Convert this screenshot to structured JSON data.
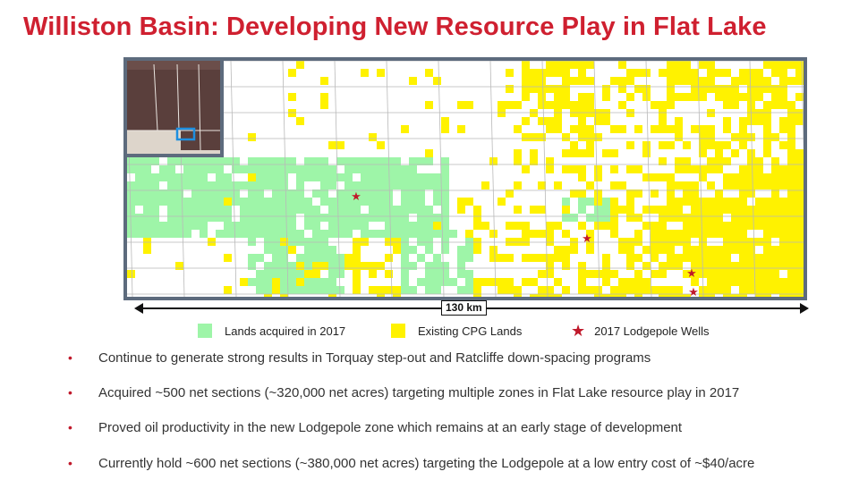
{
  "title": "Williston Basin: Developing New Resource Play in Flat Lake",
  "map": {
    "scale_label": "130 km",
    "colors": {
      "acquired_2017": "#9ef5a8",
      "existing_cpg": "#fff200",
      "well_star": "#c0192b",
      "frame": "#5d6b7d",
      "inset_highlight": "#1e8fe0"
    }
  },
  "legend": [
    {
      "label": "Lands acquired in 2017",
      "kind": "swatch",
      "color": "#9ef5a8"
    },
    {
      "label": "Existing CPG Lands",
      "kind": "swatch",
      "color": "#fff200"
    },
    {
      "label": "2017 Lodgepole Wells",
      "kind": "star",
      "color": "#c0192b"
    }
  ],
  "bullets": [
    "Continue to generate strong results in Torquay step-out and Ratcliffe down-spacing programs",
    "Acquired ~500 net sections (~320,000 net acres) targeting multiple zones in Flat Lake resource play in 2017",
    "Proved oil productivity in the new Lodgepole zone which remains at an early stage of development",
    "Currently hold ~600 net sections (~380,000 net acres) targeting the Lodgepole at a low entry cost of ~$40/acre"
  ]
}
